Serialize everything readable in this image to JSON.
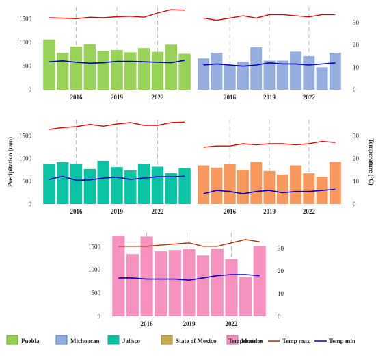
{
  "colors": {
    "Puebla": "#92d050",
    "Michoacan": "#8faadc",
    "Jalisco": "#00c0a0",
    "State of Mexico": "#c8a850",
    "Morelos": "#f48cbc",
    "Orange": "#f79256",
    "temp_max": "#e00000",
    "temp_min": "#0000cc",
    "temp_max_morelos": "#b03000",
    "grid": "#bbbbbb"
  },
  "legend": {
    "items": [
      {
        "label": "Puebla",
        "color": "#92d050",
        "border": "#6aa030"
      },
      {
        "label": "Michoacan",
        "color": "#8faadc",
        "border": "#5a7ab0"
      },
      {
        "label": "Jalisco",
        "color": "#00c0a0",
        "border": "#4a9a8a"
      },
      {
        "label": "State of Mexico",
        "color": "#c8a850",
        "border": "#9a8030"
      },
      {
        "label": "Morelos",
        "color": "#f48cbc",
        "border": "#d070a0"
      }
    ],
    "temperature_label": "Temperature",
    "temp_max_label": "Temp max",
    "temp_min_label": "Temp min"
  },
  "chart_data": [
    {
      "type": "bar",
      "panel": "top-left",
      "years": [
        2014,
        2015,
        2016,
        2017,
        2018,
        2019,
        2020,
        2021,
        2022,
        2023,
        2024
      ],
      "precipitation": [
        1060,
        780,
        910,
        960,
        820,
        840,
        790,
        880,
        800,
        950,
        760
      ],
      "temp_max": [
        1520,
        1510,
        1500,
        1530,
        1520,
        1540,
        1550,
        1530,
        1620,
        1690,
        1680
      ],
      "temp_min": [
        590,
        610,
        580,
        560,
        570,
        600,
        600,
        590,
        580,
        570,
        620
      ],
      "xticks": [
        "2016",
        "2019",
        "2022"
      ],
      "yticks": [
        "0",
        "500",
        "1000",
        "1500"
      ],
      "ylim": [
        0,
        1750
      ],
      "bar_color": "#92d050"
    },
    {
      "type": "bar",
      "panel": "top-right",
      "years": [
        2014,
        2015,
        2016,
        2017,
        2018,
        2019,
        2020,
        2021,
        2022,
        2023,
        2024
      ],
      "precipitation": [
        14,
        16.5,
        11,
        12.5,
        19,
        13,
        13,
        17,
        15,
        10,
        16.5
      ],
      "temp_max": [
        32,
        31,
        32,
        33,
        32,
        33.5,
        33.5,
        33,
        32.5,
        33.5,
        33.5
      ],
      "temp_min": [
        11,
        11.5,
        11,
        10.5,
        11,
        12,
        11.5,
        11.5,
        11,
        11.5,
        12
      ],
      "xticks": [
        "2016",
        "2019",
        "2022"
      ],
      "yticks": [
        "0",
        "10",
        "20",
        "30"
      ],
      "ylim": [
        0,
        37
      ],
      "bar_color": "#8faadc"
    },
    {
      "type": "bar",
      "panel": "middle-left",
      "years": [
        2014,
        2015,
        2016,
        2017,
        2018,
        2019,
        2020,
        2021,
        2022,
        2023,
        2024
      ],
      "precipitation": [
        880,
        920,
        880,
        770,
        950,
        810,
        740,
        880,
        820,
        680,
        790
      ],
      "temp_max": [
        1640,
        1680,
        1700,
        1750,
        1710,
        1760,
        1790,
        1730,
        1730,
        1790,
        1800
      ],
      "temp_min": [
        540,
        610,
        520,
        530,
        570,
        590,
        540,
        570,
        600,
        600,
        610
      ],
      "xticks": [
        "2016",
        "2019",
        "2022"
      ],
      "yticks": [
        "0",
        "500",
        "1000",
        "1500"
      ],
      "ylim": [
        0,
        1850
      ],
      "ylabel": "Precipitation (mm)",
      "bar_color": "#00c0a0"
    },
    {
      "type": "bar",
      "panel": "middle-right",
      "years": [
        2014,
        2015,
        2016,
        2017,
        2018,
        2019,
        2020,
        2021,
        2022,
        2023,
        2024
      ],
      "precipitation": [
        17,
        16,
        17.5,
        15,
        18.5,
        14.5,
        13,
        17,
        13.5,
        12,
        18.5
      ],
      "temp_max": [
        25,
        25.5,
        25.5,
        26.5,
        26,
        26.5,
        26.5,
        26,
        26.5,
        27.5,
        27
      ],
      "temp_min": [
        4.5,
        6,
        5.5,
        4.5,
        5.5,
        6,
        5,
        5.5,
        5.5,
        6,
        6.5
      ],
      "xticks": [
        "2016",
        "2019",
        "2022"
      ],
      "yticks": [
        "0",
        "10",
        "20",
        "30"
      ],
      "ylim": [
        0,
        37
      ],
      "ylabel": "Temperature (°C)",
      "bar_color": "#f79256"
    },
    {
      "type": "bar",
      "panel": "bottom",
      "years": [
        2014,
        2015,
        2016,
        2017,
        2018,
        2019,
        2020,
        2021,
        2022,
        2023,
        2024
      ],
      "precipitation": [
        1740,
        1340,
        1720,
        1400,
        1430,
        1450,
        1310,
        1460,
        1230,
        850,
        1510
      ],
      "temp_max": [
        31,
        31,
        31,
        31.5,
        32,
        32.5,
        31,
        31,
        32.5,
        34,
        33
      ],
      "temp_min": [
        17,
        17,
        16.5,
        16.5,
        16.5,
        16,
        17,
        18,
        18.5,
        18.5,
        18
      ],
      "xticks": [
        "2016",
        "2019",
        "2022"
      ],
      "yticks_left": [
        "0",
        "500",
        "1000",
        "1500"
      ],
      "yticks_right": [
        "0",
        "10",
        "20",
        "30"
      ],
      "ylim_left": [
        0,
        1800
      ],
      "ylim_right": [
        0,
        37
      ],
      "bar_color": "#f48cbc"
    }
  ]
}
